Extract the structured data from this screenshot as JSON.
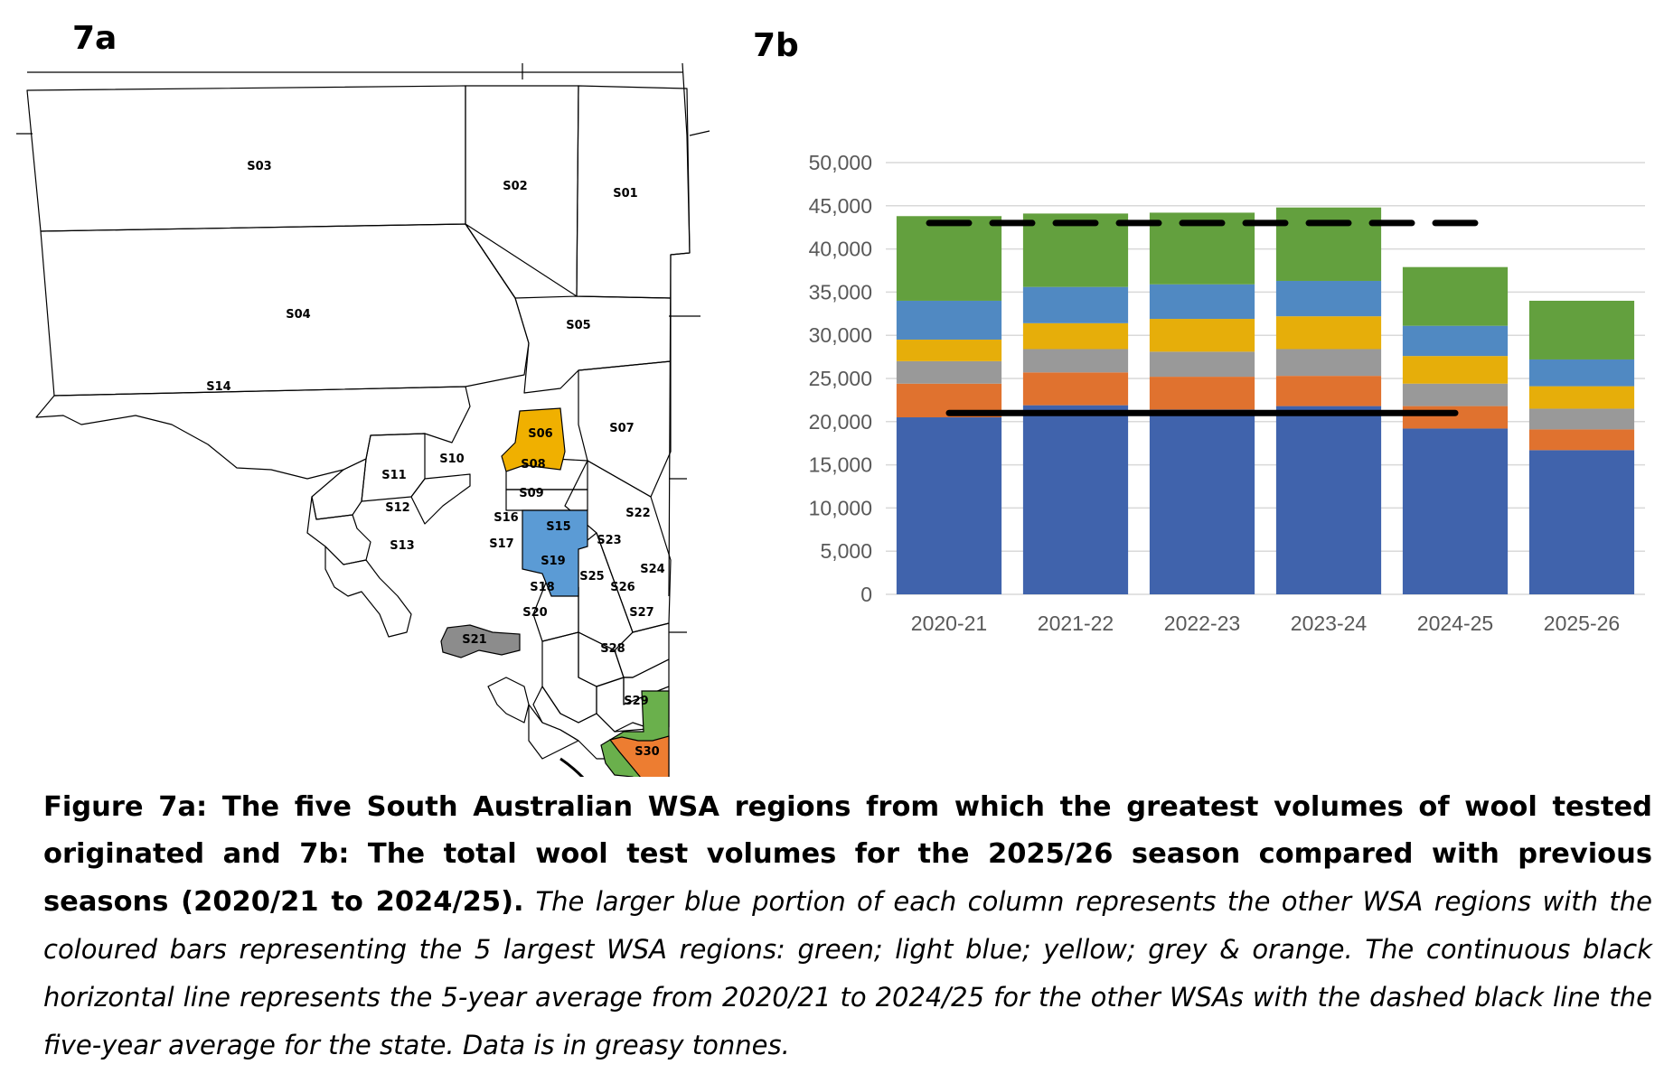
{
  "panel_a_label": "7a",
  "panel_b_label": "7b",
  "map": {
    "regions": [
      {
        "id": "S01",
        "highlight": "none"
      },
      {
        "id": "S02",
        "highlight": "none"
      },
      {
        "id": "S03",
        "highlight": "none"
      },
      {
        "id": "S04",
        "highlight": "none"
      },
      {
        "id": "S05",
        "highlight": "none"
      },
      {
        "id": "S06",
        "highlight": "#F0B000"
      },
      {
        "id": "S07",
        "highlight": "none"
      },
      {
        "id": "S08",
        "highlight": "none"
      },
      {
        "id": "S09",
        "highlight": "none"
      },
      {
        "id": "S10",
        "highlight": "none"
      },
      {
        "id": "S11",
        "highlight": "none"
      },
      {
        "id": "S12",
        "highlight": "none"
      },
      {
        "id": "S13",
        "highlight": "none"
      },
      {
        "id": "S14",
        "highlight": "none"
      },
      {
        "id": "S15",
        "highlight": "#5B9BD5"
      },
      {
        "id": "S16",
        "highlight": "none"
      },
      {
        "id": "S17",
        "highlight": "none"
      },
      {
        "id": "S18",
        "highlight": "none"
      },
      {
        "id": "S19",
        "highlight": "none"
      },
      {
        "id": "S20",
        "highlight": "none"
      },
      {
        "id": "S21",
        "highlight": "#8C8C8C"
      },
      {
        "id": "S22",
        "highlight": "none"
      },
      {
        "id": "S23",
        "highlight": "none"
      },
      {
        "id": "S24",
        "highlight": "none"
      },
      {
        "id": "S25",
        "highlight": "none"
      },
      {
        "id": "S26",
        "highlight": "none"
      },
      {
        "id": "S27",
        "highlight": "none"
      },
      {
        "id": "S28",
        "highlight": "none"
      },
      {
        "id": "S29",
        "highlight": "#6AB04C"
      },
      {
        "id": "S30",
        "highlight": "#ED7D31"
      }
    ]
  },
  "chart_data": {
    "type": "bar",
    "stacked": true,
    "categories": [
      "2020-21",
      "2021-22",
      "2022-23",
      "2023-24",
      "2024-25",
      "2025-26"
    ],
    "ylim": [
      0,
      50000
    ],
    "yticks": [
      "0",
      "5,000",
      "10,000",
      "15,000",
      "20,000",
      "25,000",
      "30,000",
      "35,000",
      "40,000",
      "45,000",
      "50,000"
    ],
    "ytick_values": [
      0,
      5000,
      10000,
      15000,
      20000,
      25000,
      30000,
      35000,
      40000,
      45000,
      50000
    ],
    "grid": true,
    "legend": "none",
    "series": [
      {
        "color": "#4063AC",
        "values": [
          20500,
          21900,
          21400,
          21800,
          19200,
          16700
        ]
      },
      {
        "color": "#E0722F",
        "values": [
          3900,
          3800,
          3800,
          3500,
          2600,
          2400
        ]
      },
      {
        "color": "#999999",
        "values": [
          2600,
          2700,
          2900,
          3100,
          2600,
          2400
        ]
      },
      {
        "color": "#E6AE0A",
        "values": [
          2500,
          3000,
          3800,
          3800,
          3200,
          2600
        ]
      },
      {
        "color": "#5089C2",
        "values": [
          4500,
          4200,
          4000,
          4100,
          3500,
          3100
        ]
      },
      {
        "color": "#63A03E",
        "values": [
          9800,
          8500,
          8300,
          8500,
          6800,
          6800
        ]
      }
    ],
    "reference_lines": [
      {
        "style": "solid",
        "value": 21000,
        "from": 0,
        "to": 4
      },
      {
        "style": "dashed",
        "value": 43000,
        "from": 0,
        "to": 4
      }
    ]
  },
  "caption": {
    "bold_text": "Figure 7a: The five South Australian WSA regions from which the greatest volumes of wool tested originated and 7b: The total wool test volumes for the 2025/26 season compared with previous seasons (2020/21 to 2024/25).",
    "italic_text": "The larger blue portion of each column represents the other WSA regions with the coloured bars representing the 5 largest WSA regions: green; light blue; yellow; grey & orange. The continuous black horizontal line represents the 5-year average from 2020/21 to 2024/25 for the other WSAs with the dashed black line the five-year average for the state. Data is in greasy tonnes."
  }
}
